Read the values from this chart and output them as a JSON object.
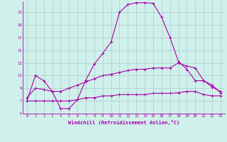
{
  "xlabel": "Windchill (Refroidissement éolien,°C)",
  "bg_color": "#cff0eb",
  "line_color": "#aa00aa",
  "grid_color": "#aacccc",
  "xlim": [
    -0.5,
    23.5
  ],
  "ylim": [
    5,
    22.7
  ],
  "yticks": [
    5,
    7,
    9,
    11,
    13,
    15,
    17,
    19,
    21
  ],
  "xticks": [
    0,
    1,
    2,
    3,
    4,
    5,
    6,
    7,
    8,
    9,
    10,
    11,
    12,
    13,
    14,
    15,
    16,
    17,
    18,
    19,
    20,
    21,
    22,
    23
  ],
  "line1_x": [
    0,
    1,
    2,
    3,
    4,
    5,
    6,
    7,
    8,
    9,
    10,
    11,
    12,
    13,
    14,
    15,
    16,
    17,
    18,
    19,
    20,
    21,
    22,
    23
  ],
  "line1_y": [
    7.0,
    11.0,
    10.2,
    8.5,
    5.8,
    5.8,
    7.2,
    10.3,
    12.8,
    14.5,
    16.3,
    21.0,
    22.2,
    22.5,
    22.5,
    22.4,
    20.2,
    17.0,
    13.2,
    12.0,
    10.2,
    10.2,
    9.2,
    8.5
  ],
  "line2_x": [
    0,
    1,
    2,
    3,
    4,
    5,
    6,
    7,
    8,
    9,
    10,
    11,
    12,
    13,
    14,
    15,
    16,
    17,
    18,
    19,
    20,
    21,
    22,
    23
  ],
  "line2_y": [
    7.5,
    9.0,
    8.8,
    8.5,
    8.5,
    9.0,
    9.5,
    10.0,
    10.5,
    11.0,
    11.2,
    11.5,
    11.8,
    12.0,
    12.0,
    12.2,
    12.2,
    12.2,
    13.0,
    12.5,
    12.2,
    10.2,
    9.5,
    8.3
  ],
  "line3_x": [
    0,
    1,
    2,
    3,
    4,
    5,
    6,
    7,
    8,
    9,
    10,
    11,
    12,
    13,
    14,
    15,
    16,
    17,
    18,
    19,
    20,
    21,
    22,
    23
  ],
  "line3_y": [
    7.0,
    7.0,
    7.0,
    7.0,
    7.0,
    7.0,
    7.2,
    7.5,
    7.5,
    7.8,
    7.8,
    8.0,
    8.0,
    8.0,
    8.0,
    8.2,
    8.2,
    8.2,
    8.3,
    8.5,
    8.5,
    8.0,
    7.8,
    7.8
  ]
}
